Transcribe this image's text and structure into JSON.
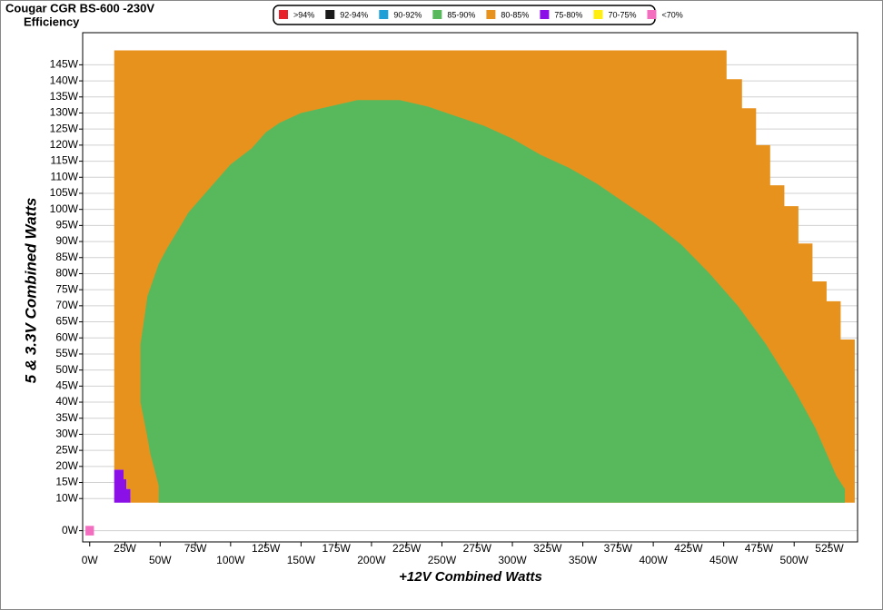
{
  "chart_data": {
    "type": "region",
    "title": "Cougar CGR BS-600 -230V",
    "subtitle": "Efficiency",
    "x_label": "+12V Combined Watts",
    "y_label": "5 & 3.3V Combined Watts",
    "xlim": [
      -5,
      545
    ],
    "ylim": [
      -3.5,
      155
    ],
    "grid": true,
    "legend": "top",
    "xticks": [
      {
        "value": 0,
        "label": "0W"
      },
      {
        "value": 25,
        "label": "25W"
      },
      {
        "value": 50,
        "label": "50W"
      },
      {
        "value": 75,
        "label": "75W"
      },
      {
        "value": 100,
        "label": "100W"
      },
      {
        "value": 125,
        "label": "125W"
      },
      {
        "value": 150,
        "label": "150W"
      },
      {
        "value": 175,
        "label": "175W"
      },
      {
        "value": 200,
        "label": "200W"
      },
      {
        "value": 225,
        "label": "225W"
      },
      {
        "value": 250,
        "label": "250W"
      },
      {
        "value": 275,
        "label": "275W"
      },
      {
        "value": 300,
        "label": "300W"
      },
      {
        "value": 325,
        "label": "325W"
      },
      {
        "value": 350,
        "label": "350W"
      },
      {
        "value": 375,
        "label": "375W"
      },
      {
        "value": 400,
        "label": "400W"
      },
      {
        "value": 425,
        "label": "425W"
      },
      {
        "value": 450,
        "label": "450W"
      },
      {
        "value": 475,
        "label": "475W"
      },
      {
        "value": 500,
        "label": "500W"
      },
      {
        "value": 525,
        "label": "525W"
      }
    ],
    "yticks": [
      {
        "value": 0,
        "label": "0W"
      },
      {
        "value": 10,
        "label": "10W"
      },
      {
        "value": 15,
        "label": "15W"
      },
      {
        "value": 20,
        "label": "20W"
      },
      {
        "value": 25,
        "label": "25W"
      },
      {
        "value": 30,
        "label": "30W"
      },
      {
        "value": 35,
        "label": "35W"
      },
      {
        "value": 40,
        "label": "40W"
      },
      {
        "value": 45,
        "label": "45W"
      },
      {
        "value": 50,
        "label": "50W"
      },
      {
        "value": 55,
        "label": "55W"
      },
      {
        "value": 60,
        "label": "60W"
      },
      {
        "value": 65,
        "label": "65W"
      },
      {
        "value": 70,
        "label": "70W"
      },
      {
        "value": 75,
        "label": "75W"
      },
      {
        "value": 80,
        "label": "80W"
      },
      {
        "value": 85,
        "label": "85W"
      },
      {
        "value": 90,
        "label": "90W"
      },
      {
        "value": 95,
        "label": "95W"
      },
      {
        "value": 100,
        "label": "100W"
      },
      {
        "value": 105,
        "label": "105W"
      },
      {
        "value": 110,
        "label": "110W"
      },
      {
        "value": 115,
        "label": "115W"
      },
      {
        "value": 120,
        "label": "120W"
      },
      {
        "value": 125,
        "label": "125W"
      },
      {
        "value": 130,
        "label": "130W"
      },
      {
        "value": 135,
        "label": "135W"
      },
      {
        "value": 140,
        "label": "140W"
      },
      {
        "value": 145,
        "label": "145W"
      }
    ],
    "series": [
      {
        "name": ">94%",
        "color": "#e8202a",
        "x": [],
        "y": []
      },
      {
        "name": "92-94%",
        "color": "#1a1a1a",
        "x": [],
        "y": []
      },
      {
        "name": "90-92%",
        "color": "#1e9fd8",
        "x": [],
        "y": []
      },
      {
        "name": "85-90%",
        "color": "#58b95c",
        "x": [
          49,
          49,
          46,
          43,
          41,
          36,
          36,
          38,
          41,
          45,
          49,
          55,
          62,
          70,
          80,
          90,
          100,
          115,
          125,
          135,
          150,
          170,
          190,
          220,
          240,
          260,
          280,
          300,
          320,
          340,
          360,
          380,
          400,
          420,
          440,
          460,
          480,
          500,
          515,
          525,
          530,
          536,
          536
        ],
        "y": [
          8.7,
          14,
          19,
          24,
          29,
          40,
          58,
          64,
          73,
          78,
          83,
          88,
          93,
          99,
          104,
          109,
          114,
          119,
          124,
          127,
          130,
          132,
          134,
          134,
          132,
          129,
          126,
          122,
          117,
          113,
          108,
          102,
          96,
          89,
          80,
          70,
          58,
          44,
          32,
          22,
          17,
          13,
          8.7
        ]
      },
      {
        "name": "80-85%",
        "color": "#e8921e",
        "x": [
          17.4,
          17.4,
          452,
          452,
          463,
          463,
          473,
          473,
          483,
          483,
          493,
          493,
          503,
          503,
          513,
          513,
          523,
          523,
          533,
          533,
          543,
          543,
          29,
          29,
          26,
          26,
          24,
          24
        ],
        "y": [
          19,
          149.5,
          149.5,
          140.5,
          140.5,
          131.5,
          131.5,
          120,
          120,
          107.5,
          107.5,
          101,
          101,
          89.4,
          89.4,
          77.6,
          77.6,
          71.4,
          71.4,
          59.5,
          59.5,
          8.7,
          8.7,
          13,
          13,
          16,
          16,
          19
        ]
      },
      {
        "name": "75-80%",
        "color": "#8b10e8",
        "x": [
          17.4,
          17.4,
          24,
          24,
          26,
          26,
          29,
          29
        ],
        "y": [
          8.7,
          19,
          19,
          16,
          16,
          13,
          13,
          8.7
        ]
      },
      {
        "name": "70-75%",
        "color": "#ffee10",
        "x": [],
        "y": []
      },
      {
        "name": "<70%",
        "color": "#f46ec0",
        "x": [
          -3,
          3,
          3,
          -3
        ],
        "y": [
          -1.5,
          -1.5,
          1.5,
          1.5
        ]
      }
    ]
  }
}
